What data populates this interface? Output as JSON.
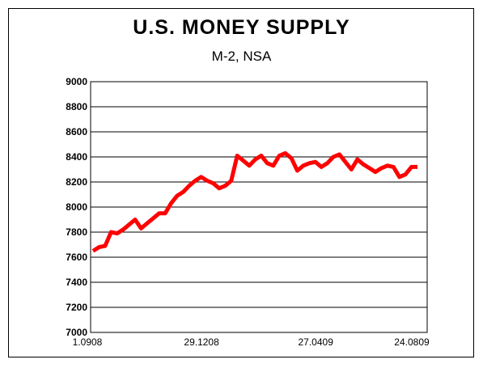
{
  "chart_data": {
    "type": "line",
    "title": "U.S. MONEY SUPPLY",
    "subtitle": "M-2, NSA",
    "xlabel": "",
    "ylabel": "",
    "ylim": [
      7000,
      9000
    ],
    "yticks": [
      9000,
      8800,
      8600,
      8400,
      8200,
      8000,
      7800,
      7600,
      7400,
      7200,
      7000
    ],
    "xtick_labels": [
      "1.0908",
      "29.1208",
      "27.0409",
      "24.0809"
    ],
    "grid": "horizontal",
    "legend": "none",
    "line_color": "#ff0000",
    "series": [
      {
        "values": [
          7650,
          7680,
          7690,
          7800,
          7790,
          7820,
          7860,
          7900,
          7830,
          7870,
          7910,
          7950,
          7950,
          8030,
          8090,
          8120,
          8170,
          8210,
          8240,
          8210,
          8190,
          8150,
          8170,
          8210,
          8410,
          8370,
          8330,
          8380,
          8410,
          8350,
          8330,
          8410,
          8430,
          8390,
          8290,
          8330,
          8350,
          8360,
          8320,
          8350,
          8400,
          8420,
          8360,
          8300,
          8380,
          8340,
          8310,
          8280,
          8310,
          8330,
          8320,
          8240,
          8260,
          8320,
          8320
        ]
      }
    ]
  }
}
